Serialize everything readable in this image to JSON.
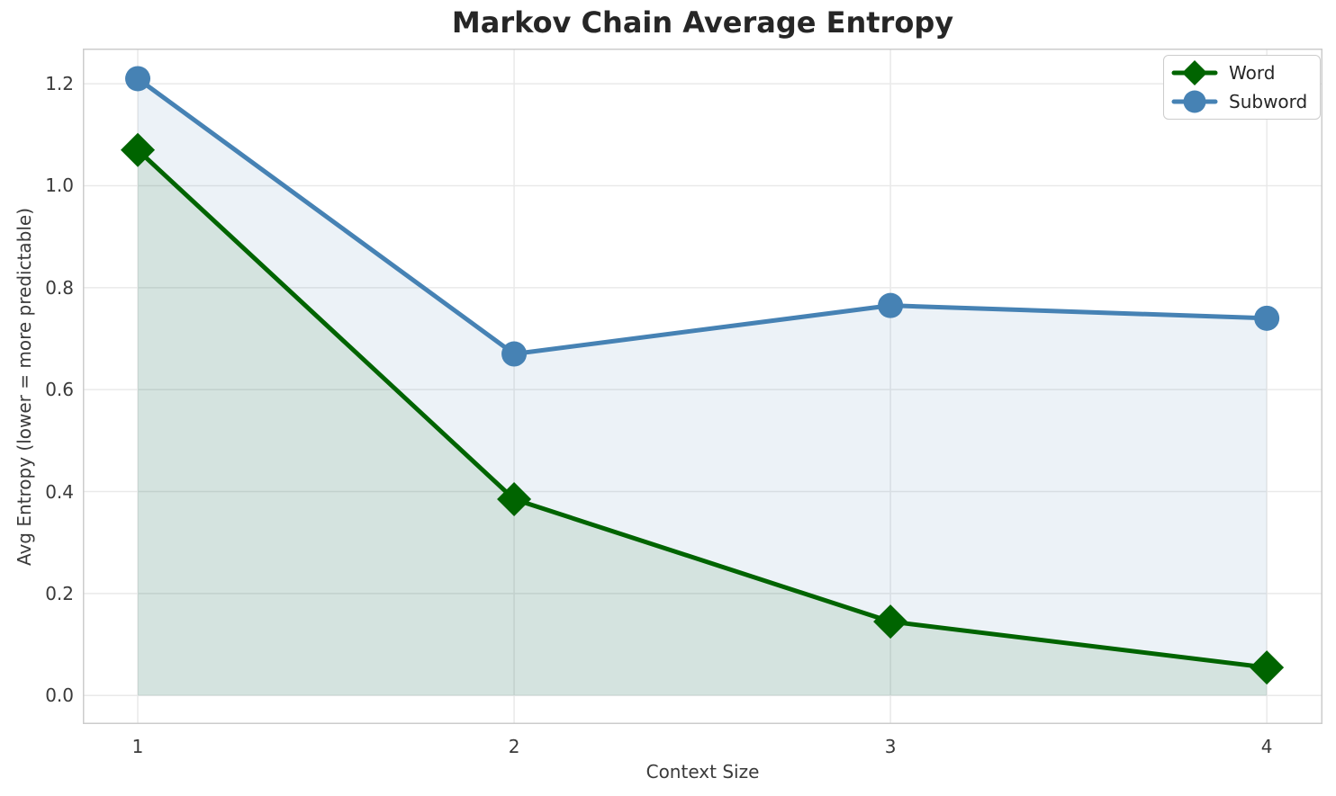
{
  "figure": {
    "background_color": "#ffffff",
    "frame_color": "#cccccc",
    "grid_color": "#e9e9e9",
    "text_color": "#3a3a3a",
    "title_color": "#262626"
  },
  "chart_data": {
    "type": "line",
    "title": "Markov Chain Average Entropy",
    "xlabel": "Context Size",
    "ylabel": "Avg Entropy (lower = more predictable)",
    "x": [
      1,
      2,
      3,
      4
    ],
    "series": [
      {
        "name": "Word",
        "color": "#006400",
        "marker": "diamond",
        "values": [
          1.07,
          0.385,
          0.145,
          0.055
        ],
        "fill_to_zero": true,
        "fill_alpha": 0.1
      },
      {
        "name": "Subword",
        "color": "#4682B4",
        "marker": "circle",
        "values": [
          1.21,
          0.67,
          0.765,
          0.74
        ],
        "fill_to_zero": true,
        "fill_alpha": 0.1
      }
    ],
    "xticks": [
      1,
      2,
      3,
      4
    ],
    "xtick_labels": [
      "1",
      "2",
      "3",
      "4"
    ],
    "yticks": [
      0.0,
      0.2,
      0.4,
      0.6,
      0.8,
      1.0,
      1.2
    ],
    "ytick_labels": [
      "0.0",
      "0.2",
      "0.4",
      "0.6",
      "0.8",
      "1.0",
      "1.2"
    ],
    "xlim": [
      0.854,
      4.148
    ],
    "ylim": [
      -0.056,
      1.269
    ],
    "grid": true,
    "legend_position": "upper right"
  }
}
